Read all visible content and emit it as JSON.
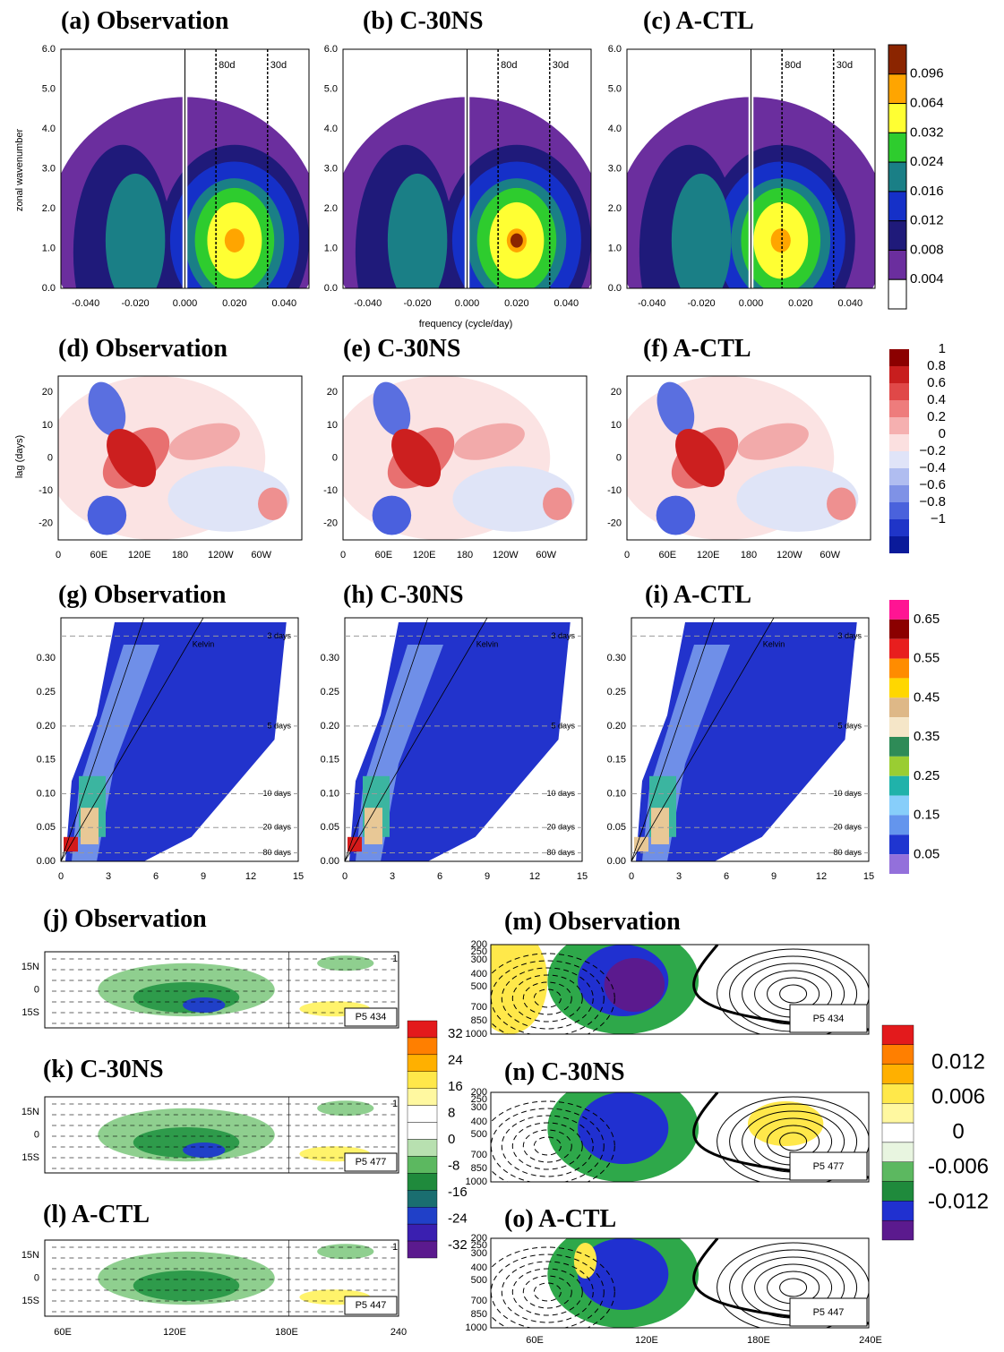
{
  "spectra": {
    "titles": [
      "(a) Observation",
      "(b) C-30NS",
      "(c) A-CTL"
    ],
    "y_label": "zonal wavenumber",
    "x_label": "frequency (cycle/day)",
    "xticks": [
      "-0.040",
      "-0.020",
      "0.000",
      "0.020",
      "0.040"
    ],
    "yticks": [
      "0.0",
      "1.0",
      "2.0",
      "3.0",
      "4.0",
      "5.0",
      "6.0"
    ],
    "period_labels": [
      "80d",
      "30d"
    ],
    "colorbar": [
      "0.096",
      "0.064",
      "0.032",
      "0.024",
      "0.016",
      "0.012",
      "0.008",
      "0.004"
    ]
  },
  "lag": {
    "titles": [
      "(d) Observation",
      "(e) C-30NS",
      "(f) A-CTL"
    ],
    "y_label": "lag (days)",
    "xticks": [
      "0",
      "60E",
      "120E",
      "180",
      "120W",
      "60W"
    ],
    "yticks": [
      "20",
      "10",
      "0",
      "-10",
      "-20"
    ],
    "colorbar": [
      "1",
      "0.8",
      "0.6",
      "0.4",
      "0.2",
      "0",
      "−0.2",
      "−0.4",
      "−0.6",
      "−0.8",
      "−1"
    ]
  },
  "wk": {
    "titles": [
      "(g) Observation",
      "(h) C-30NS",
      "(i) A-CTL"
    ],
    "xticks": [
      "0",
      "3",
      "6",
      "9",
      "12",
      "15"
    ],
    "yticks": [
      "0.00",
      "0.05",
      "0.10",
      "0.15",
      "0.20",
      "0.25",
      "0.30"
    ],
    "period_labels": [
      "3 days",
      "5 days",
      "10 days",
      "20 days",
      "80 days"
    ],
    "wave_label": "Kelvin",
    "colorbar": [
      "0.65",
      "0.55",
      "0.45",
      "0.35",
      "0.25",
      "0.15",
      "0.05"
    ]
  },
  "maps": {
    "titles": [
      "(j) Observation",
      "(k) C-30NS",
      "(l) A-CTL"
    ],
    "yticks": [
      "15N",
      "0",
      "15S"
    ],
    "xticks": [
      "60E",
      "120E",
      "180E",
      "240"
    ],
    "pattern_labels": [
      "P5 434",
      "P5 477",
      "P5 447"
    ],
    "vector_ref": "1",
    "colorbar": [
      "32",
      "24",
      "16",
      "8",
      "0",
      "-8",
      "-16",
      "-24",
      "-32"
    ]
  },
  "sections": {
    "titles": [
      "(m) Observation",
      "(n) C-30NS",
      "(o) A-CTL"
    ],
    "yticks": [
      "200",
      "250",
      "300",
      "400",
      "500",
      "700",
      "850",
      "1000"
    ],
    "xticks": [
      "60E",
      "120E",
      "180E",
      "240E"
    ],
    "pattern_labels": [
      "P5 434",
      "P5 477",
      "P5 447"
    ],
    "colorbar": [
      "0.012",
      "0.006",
      "0",
      "-0.006",
      "-0.012"
    ]
  }
}
